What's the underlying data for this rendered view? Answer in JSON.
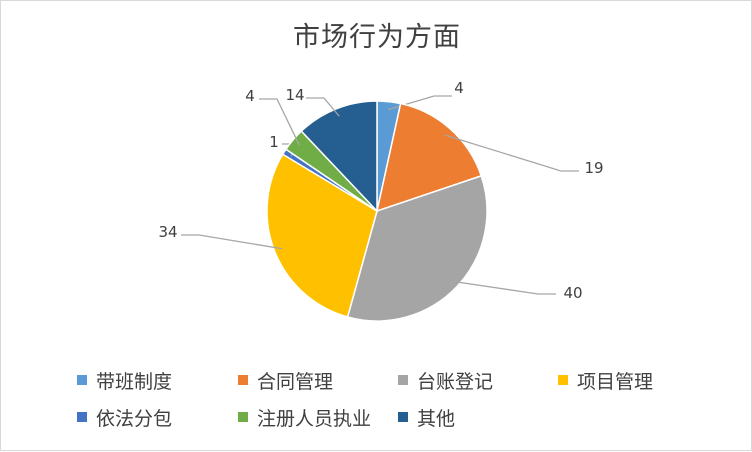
{
  "chart_data": {
    "type": "pie",
    "title": "市场行为方面",
    "categories": [
      "带班制度",
      "合同管理",
      "台账登记",
      "项目管理",
      "依法分包",
      "注册人员执业",
      "其他"
    ],
    "values": [
      4,
      19,
      40,
      34,
      1,
      4,
      14
    ],
    "colors": [
      "#5b9bd5",
      "#ed7d31",
      "#a5a5a5",
      "#ffc000",
      "#4472c4",
      "#70ad47",
      "#255e91"
    ],
    "data_labels": [
      "4",
      "19",
      "40",
      "34",
      "1",
      "4",
      "14"
    ],
    "legend_position": "bottom",
    "start_angle_deg": 0,
    "direction": "clockwise"
  }
}
